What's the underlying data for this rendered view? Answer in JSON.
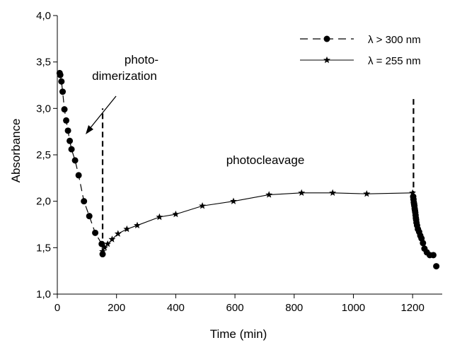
{
  "chart_data": {
    "type": "scatter",
    "xlabel": "Time (min)",
    "ylabel": "Absorbance",
    "xlim": [
      0,
      1300
    ],
    "ylim": [
      1.0,
      4.0
    ],
    "x_ticks": [
      0,
      200,
      400,
      600,
      800,
      1000,
      1200
    ],
    "y_ticks": [
      1.0,
      1.5,
      2.0,
      2.5,
      3.0,
      3.5,
      4.0
    ],
    "x_tick_labels": [
      "0",
      "200",
      "400",
      "600",
      "800",
      "1000",
      "1200"
    ],
    "y_tick_labels": [
      "1,0",
      "1,5",
      "2,0",
      "2,5",
      "3,0",
      "3,5",
      "4,0"
    ],
    "grid": false,
    "legend_position": "top-right",
    "series": [
      {
        "name": "λ > 300 nm",
        "style": "dashed-circle",
        "segments": [
          {
            "x": [
              8,
              10,
              14,
              18,
              24,
              30,
              36,
              42,
              48,
              60,
              72,
              90,
              108,
              128,
              150,
              153
            ],
            "y": [
              3.38,
              3.36,
              3.29,
              3.18,
              2.99,
              2.87,
              2.76,
              2.65,
              2.56,
              2.44,
              2.28,
              2.0,
              1.84,
              1.66,
              1.54,
              1.43
            ]
          },
          {
            "x": [
              1202,
              1203,
              1204,
              1205,
              1206,
              1207,
              1208,
              1209,
              1210,
              1211,
              1212,
              1213,
              1215,
              1218,
              1222,
              1226,
              1230,
              1235,
              1240,
              1248,
              1258,
              1270
            ],
            "y": [
              2.05,
              2.02,
              1.99,
              1.97,
              1.95,
              1.92,
              1.9,
              1.88,
              1.85,
              1.82,
              1.8,
              1.77,
              1.74,
              1.7,
              1.67,
              1.63,
              1.6,
              1.55,
              1.49,
              1.45,
              1.42,
              1.42
            ]
          },
          {
            "x": [
              1280
            ],
            "y": [
              1.3
            ]
          }
        ]
      },
      {
        "name": "λ = 255 nm",
        "style": "solid-star",
        "segments": [
          {
            "x": [
              153,
              160,
              170,
              185,
              205,
              235,
              270,
              345,
              400,
              490,
              595,
              715,
              825,
              930,
              1045,
              1200
            ],
            "y": [
              1.46,
              1.5,
              1.54,
              1.59,
              1.65,
              1.7,
              1.74,
              1.83,
              1.86,
              1.95,
              2.0,
              2.07,
              2.09,
              2.09,
              2.08,
              2.09
            ]
          }
        ]
      }
    ],
    "vertical_lines": [
      {
        "x": 153,
        "y_from": 1.5,
        "y_to": 3.0,
        "style": "dashed"
      },
      {
        "x": 1203,
        "y_from": 2.05,
        "y_to": 3.12,
        "style": "dashed"
      }
    ],
    "annotations": [
      {
        "text_lines": [
          "photo-",
          "dimerization"
        ],
        "style": "arrow"
      },
      {
        "text_lines": [
          "photocleavage"
        ],
        "style": "text"
      }
    ]
  }
}
